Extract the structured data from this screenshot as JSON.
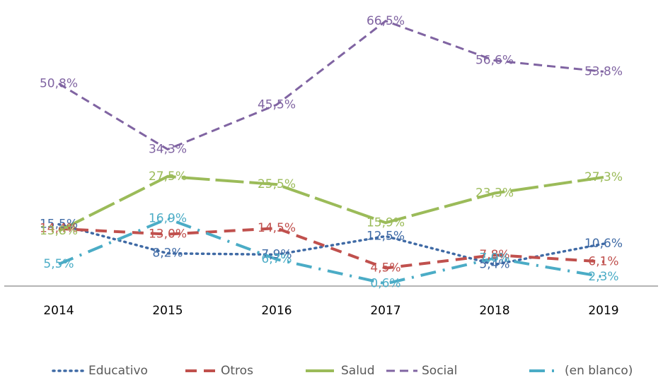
{
  "chart_data": {
    "type": "line",
    "categories": [
      "2014",
      "2015",
      "2016",
      "2017",
      "2018",
      "2019"
    ],
    "ylim": [
      0,
      70
    ],
    "legend": "bottom",
    "series": [
      {
        "name": "Educativo",
        "color": "#3f6aa5",
        "dash": "dotted",
        "values": [
          15.5,
          8.2,
          7.9,
          12.5,
          5.4,
          10.6
        ],
        "value_labels": [
          "15,5%",
          "8,2%",
          "7,9%",
          "12,5%",
          "5,4%",
          "10,6%"
        ]
      },
      {
        "name": "Otros",
        "color": "#c0504d",
        "dash": "dashed",
        "values": [
          14.4,
          13.0,
          14.5,
          4.5,
          7.8,
          6.1
        ],
        "value_labels": [
          "14,4%",
          "13,0%",
          "14,5%",
          "4,5%",
          "7,8%",
          "6,1%"
        ]
      },
      {
        "name": "Salud",
        "color": "#9bbb59",
        "dash": "longdash",
        "values": [
          13.8,
          27.5,
          25.5,
          15.9,
          23.3,
          27.3
        ],
        "value_labels": [
          "13,8%",
          "27,5%",
          "25,5%",
          "15,9%",
          "23,3%",
          "27,3%"
        ]
      },
      {
        "name": "Social",
        "color": "#8064a2",
        "dash": "dash",
        "values": [
          50.8,
          34.3,
          45.5,
          66.5,
          56.6,
          53.8
        ],
        "value_labels": [
          "50,8%",
          "34,3%",
          "45,5%",
          "66,5%",
          "56,6%",
          "53,8%"
        ]
      },
      {
        "name": "(en blanco)",
        "color": "#4bacc6",
        "dash": "dashdot",
        "values": [
          5.5,
          16.9,
          6.7,
          0.6,
          7.0,
          2.3
        ],
        "value_labels": [
          "5,5%",
          "16,9%",
          "6,7%",
          "0,6%",
          "7,0%",
          "2,3%"
        ]
      }
    ]
  }
}
